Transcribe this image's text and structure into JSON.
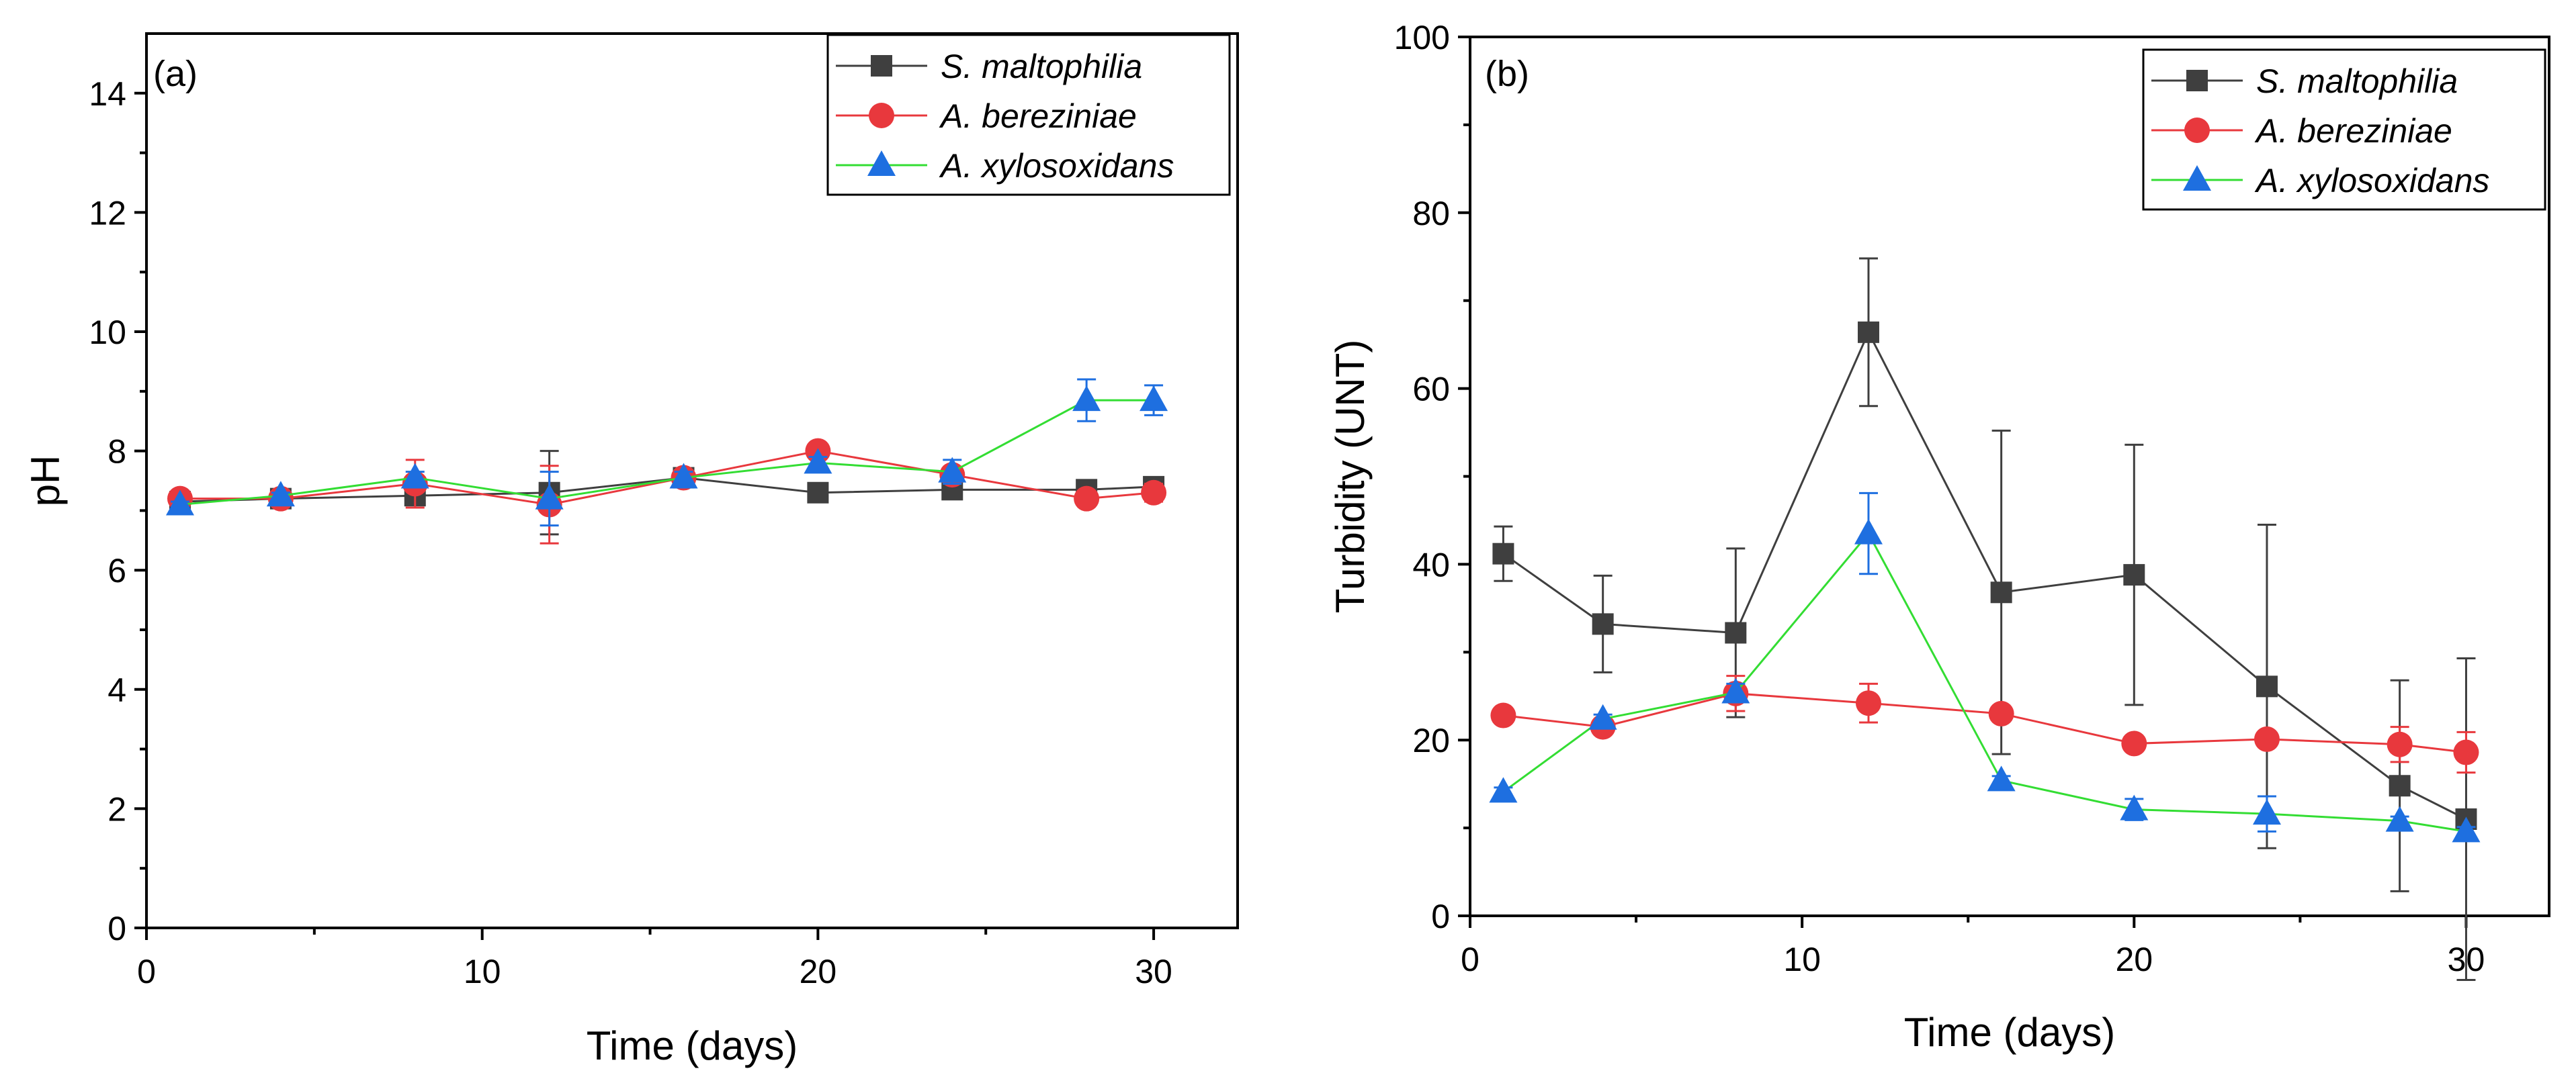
{
  "colors": {
    "S. maltophilia": "#3f3f3f",
    "A. bereziniae": "#e8383d",
    "A. xylosoxidans": "#1e6fe0",
    "A. xylosoxidans_line": "#33dd33"
  },
  "chart_data": [
    {
      "type": "line",
      "panel_label": "(a)",
      "xlabel": "Time (days)",
      "ylabel": "pH",
      "xlim": [
        0,
        32.5
      ],
      "ylim": [
        0,
        15
      ],
      "xticks": [
        0,
        10,
        20,
        30
      ],
      "yticks": [
        0,
        2,
        4,
        6,
        8,
        10,
        12,
        14
      ],
      "x": [
        1,
        4,
        8,
        12,
        16,
        20,
        24,
        28,
        30
      ],
      "series": [
        {
          "name": "S. maltophilia",
          "marker": "square",
          "values": [
            7.15,
            7.2,
            7.25,
            7.3,
            7.55,
            7.3,
            7.35,
            7.35,
            7.4
          ],
          "errors": [
            0.05,
            0.05,
            0.1,
            0.7,
            0.1,
            0.05,
            0.15,
            0.1,
            0.1
          ]
        },
        {
          "name": "A. bereziniae",
          "marker": "circle",
          "values": [
            7.2,
            7.2,
            7.45,
            7.1,
            7.55,
            8.0,
            7.6,
            7.2,
            7.3
          ],
          "errors": [
            0.05,
            0.05,
            0.4,
            0.65,
            0.1,
            0.1,
            0.1,
            0.1,
            0.15
          ]
        },
        {
          "name": "A. xylosoxidans",
          "marker": "triangle",
          "values": [
            7.1,
            7.25,
            7.55,
            7.2,
            7.55,
            7.8,
            7.65,
            8.85,
            8.85
          ],
          "errors": [
            0.05,
            0.05,
            0.1,
            0.45,
            0.1,
            0.1,
            0.2,
            0.35,
            0.25
          ]
        }
      ],
      "legend": "top-right"
    },
    {
      "type": "line",
      "panel_label": "(b)",
      "xlabel": "Time (days)",
      "ylabel": "Turbidity (UNT)",
      "xlim": [
        0,
        32.5
      ],
      "ylim": [
        0,
        100
      ],
      "xticks": [
        0,
        10,
        20,
        30
      ],
      "yticks": [
        0,
        20,
        40,
        60,
        80,
        100
      ],
      "x": [
        1,
        4,
        8,
        12,
        16,
        20,
        24,
        28,
        30
      ],
      "series": [
        {
          "name": "S. maltophilia",
          "marker": "square",
          "values": [
            41.2,
            33.2,
            32.2,
            66.4,
            36.8,
            38.8,
            26.1,
            14.8,
            11.0
          ],
          "errors": [
            3.1,
            5.5,
            9.6,
            8.4,
            18.4,
            14.8,
            18.4,
            12.0,
            18.3
          ]
        },
        {
          "name": "A. bereziniae",
          "marker": "circle",
          "values": [
            22.8,
            21.5,
            25.3,
            24.2,
            23.0,
            19.6,
            20.1,
            19.5,
            18.6
          ],
          "errors": [
            0.5,
            0.5,
            2.0,
            2.2,
            0.5,
            0.8,
            0.5,
            2.0,
            2.3
          ]
        },
        {
          "name": "A. xylosoxidans",
          "marker": "triangle",
          "values": [
            14.1,
            22.4,
            25.4,
            43.5,
            15.4,
            12.1,
            11.6,
            10.8,
            9.6
          ],
          "errors": [
            0.5,
            0.5,
            1.0,
            4.6,
            0.5,
            1.2,
            2.0,
            0.5,
            0.5
          ]
        }
      ],
      "legend": "top-right"
    }
  ]
}
